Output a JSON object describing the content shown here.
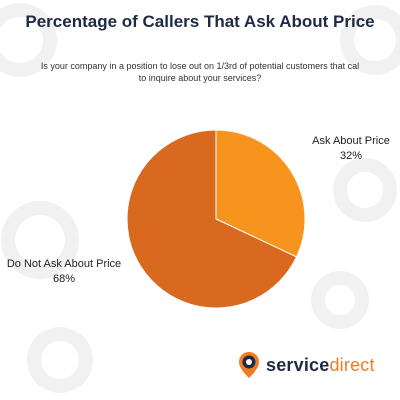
{
  "title": "Percentage of Callers That Ask About Price",
  "subtitle": "Is your company in a position to lose out on 1/3rd of potential customers that cal to inquire about your services?",
  "chart_data": {
    "type": "pie",
    "title": "Percentage of Callers That Ask About Price",
    "categories": [
      "Ask About Price",
      "Do Not Ask About Price"
    ],
    "values": [
      32,
      68
    ],
    "value_labels": [
      "32%",
      "68%"
    ],
    "colors": [
      "#f7941e",
      "#d8691f"
    ],
    "start_angle_deg": 0,
    "direction": "clockwise"
  },
  "logo": {
    "word1": "service",
    "word2": "direct",
    "colors": {
      "navy": "#1f2a44",
      "orange": "#f07d22"
    },
    "icon": "location-pin-icon"
  },
  "background": {
    "icon": "gear-icon",
    "color": "#f1f1f1"
  }
}
